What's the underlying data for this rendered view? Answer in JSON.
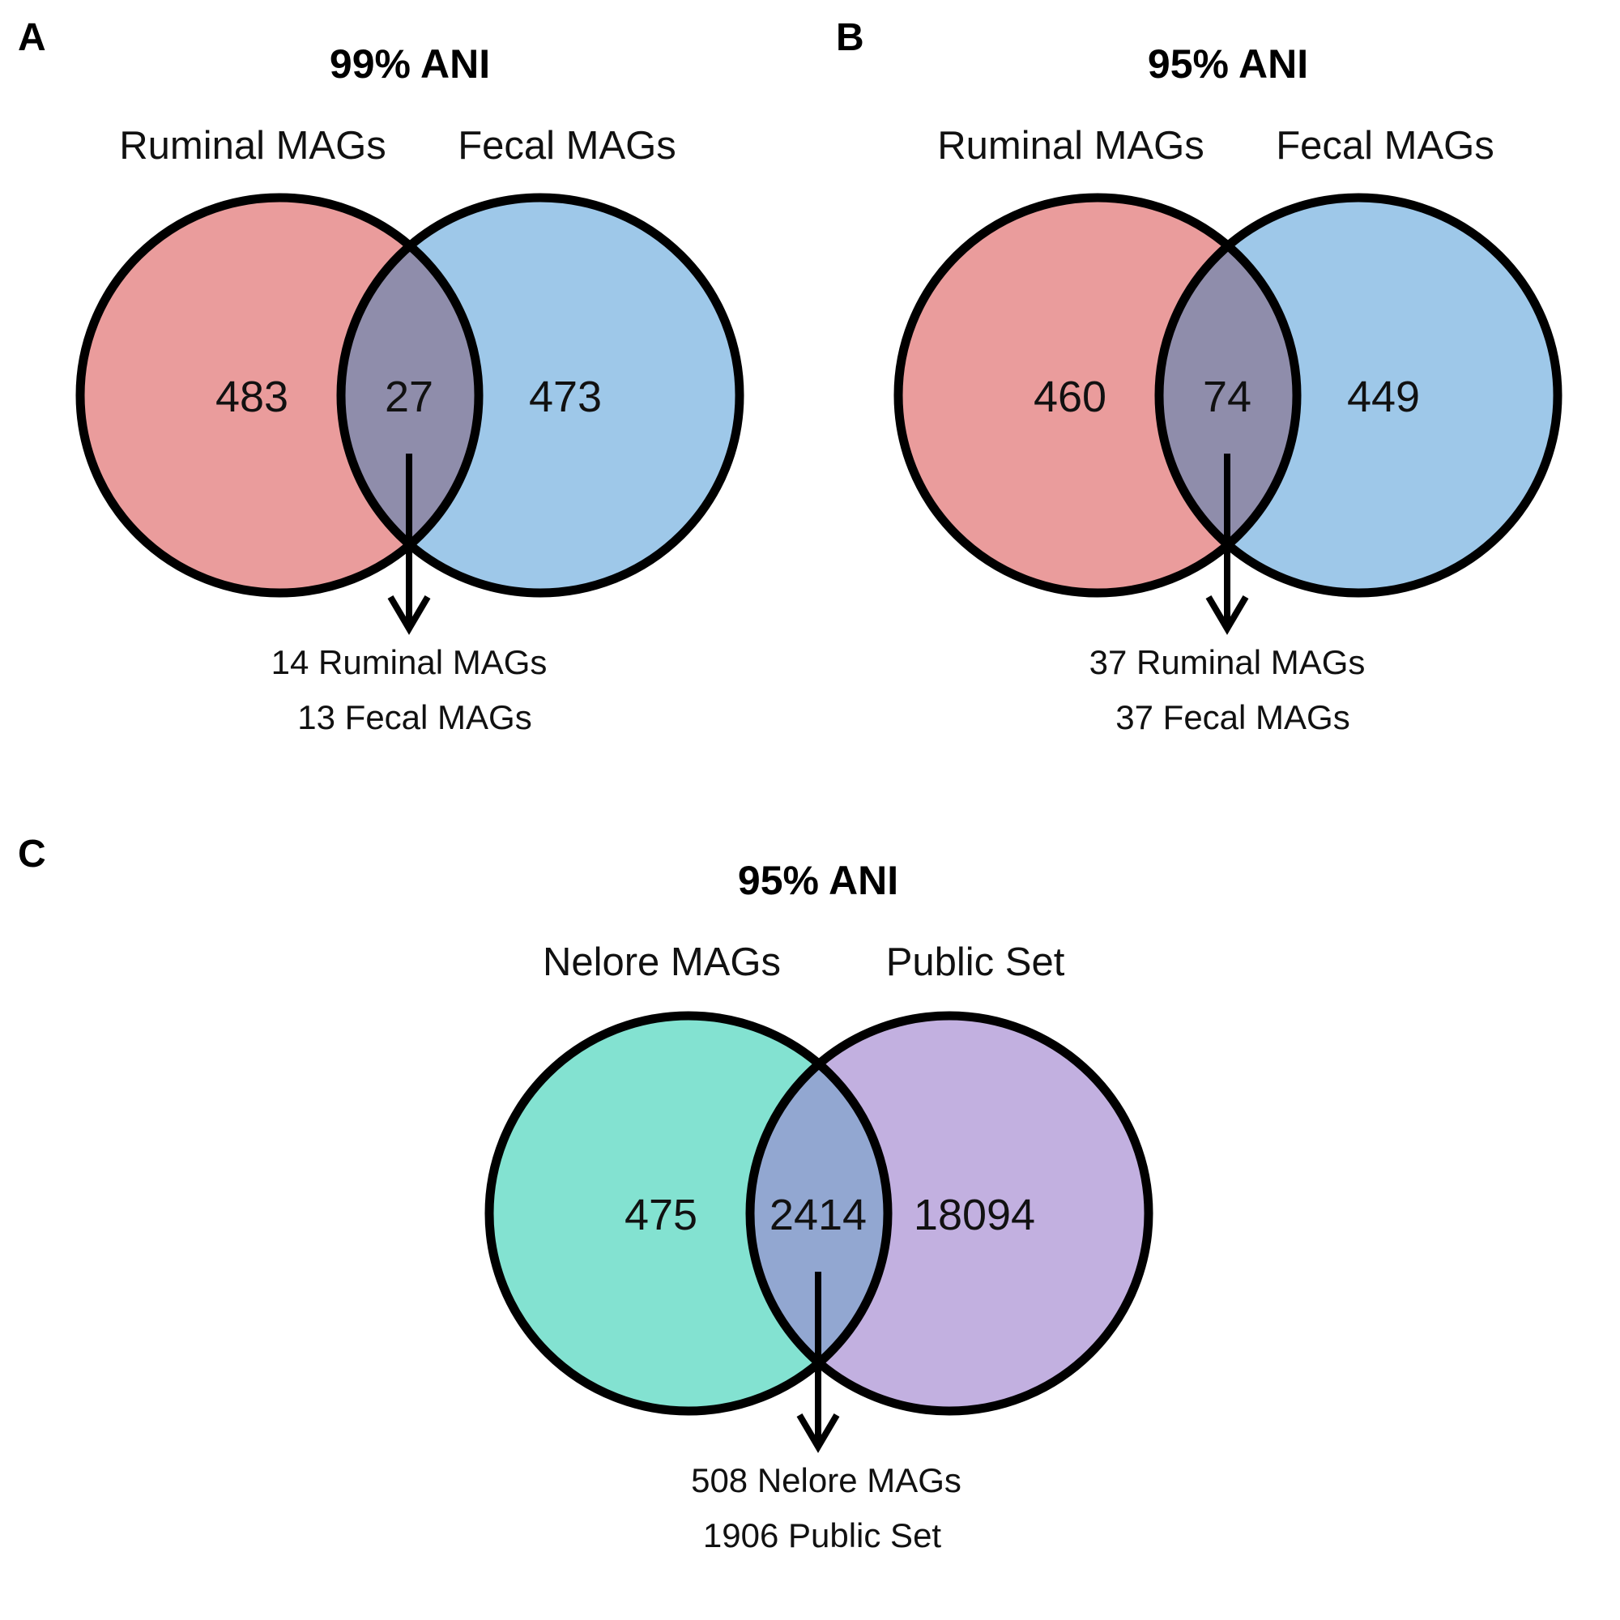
{
  "panels": [
    {
      "letter": "A",
      "title": "99% ANI",
      "left_label": "Ruminal MAGs",
      "right_label": "Fecal MAGs",
      "left_only": "483",
      "shared": "27",
      "right_only": "473",
      "note_line1": "14  Ruminal MAGs",
      "note_line2": "13  Fecal MAGs",
      "left_color": "#ea9c9c",
      "right_color": "#9ec8e9",
      "overlap_color": "#8f8dab"
    },
    {
      "letter": "B",
      "title": "95% ANI",
      "left_label": "Ruminal MAGs",
      "right_label": "Fecal MAGs",
      "left_only": "460",
      "shared": "74",
      "right_only": "449",
      "note_line1": "37  Ruminal MAGs",
      "note_line2": "37  Fecal MAGs",
      "left_color": "#ea9c9c",
      "right_color": "#9ec8e9",
      "overlap_color": "#8f8dab"
    },
    {
      "letter": "C",
      "title": "95% ANI",
      "left_label": "Nelore MAGs",
      "right_label": "Public Set",
      "left_only": "475",
      "shared": "2414",
      "right_only": "18094",
      "note_line1": "508  Nelore MAGs",
      "note_line2": "1906  Public Set",
      "left_color": "#83e2d1",
      "right_color": "#c2b0e0",
      "overlap_color": "#92a7d1"
    }
  ]
}
